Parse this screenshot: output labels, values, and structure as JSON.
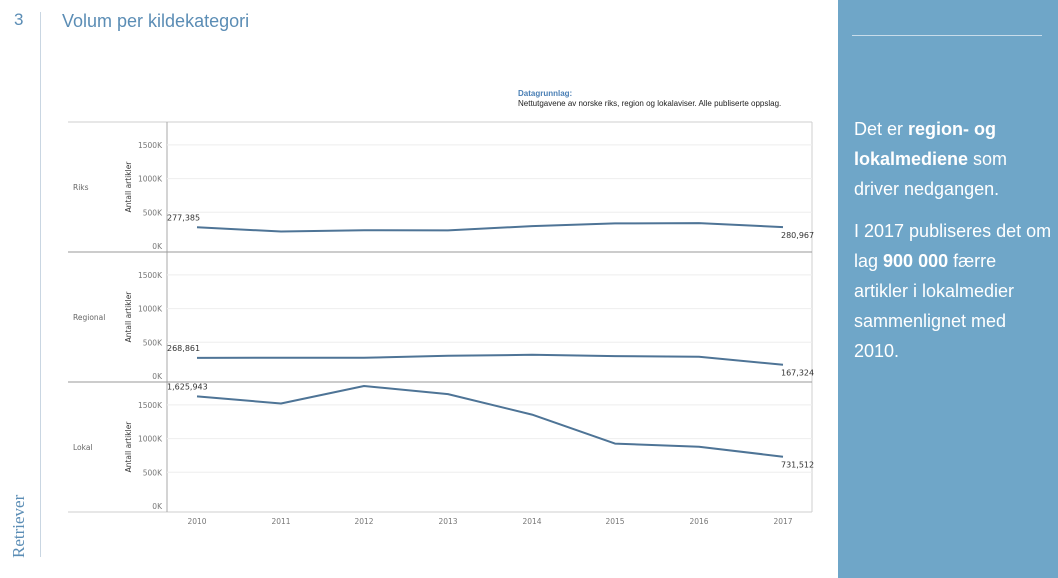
{
  "slide": {
    "number": "3",
    "title": "Volum per kildekategori"
  },
  "logo_text": "Retriever",
  "right_panel": {
    "para1": {
      "a": "Det er ",
      "b": "region- og lokalmediene",
      "c": " som driver nedgangen."
    },
    "para2": {
      "a": "I 2017 publiseres det om lag ",
      "b": "900 000",
      "c": " færre artikler i lokalmedier sammenlignet med 2010."
    }
  },
  "colors": {
    "accent": "#5b8db5",
    "panel_bg": "#6fa6c8",
    "line": "#4e7496"
  },
  "chart_data": {
    "type": "line",
    "datasource": {
      "heading": "Datagrunnlag:",
      "note": "Nettutgavene av norske riks, region og lokalaviser. Alle publiserte oppslag."
    },
    "x": [
      "2010",
      "2011",
      "2012",
      "2013",
      "2014",
      "2015",
      "2016",
      "2017"
    ],
    "ylabel": "Antall artikler",
    "y_ticks": [
      "0K",
      "500K",
      "1000K",
      "1500K"
    ],
    "ylim": [
      0,
      1750000
    ],
    "grid": true,
    "series": [
      {
        "name": "Riks",
        "values": [
          277385,
          215000,
          235000,
          232000,
          295000,
          335000,
          340000,
          280967
        ],
        "first_label": "277,385",
        "last_label": "280,967"
      },
      {
        "name": "Regional",
        "values": [
          268861,
          272000,
          270000,
          300000,
          315000,
          295000,
          285000,
          167324
        ],
        "first_label": "268,861",
        "last_label": "167,324"
      },
      {
        "name": "Lokal",
        "values": [
          1625943,
          1520000,
          1780000,
          1660000,
          1355000,
          925000,
          880000,
          731512
        ],
        "first_label": "1,625,943",
        "last_label": "731,512"
      }
    ]
  }
}
